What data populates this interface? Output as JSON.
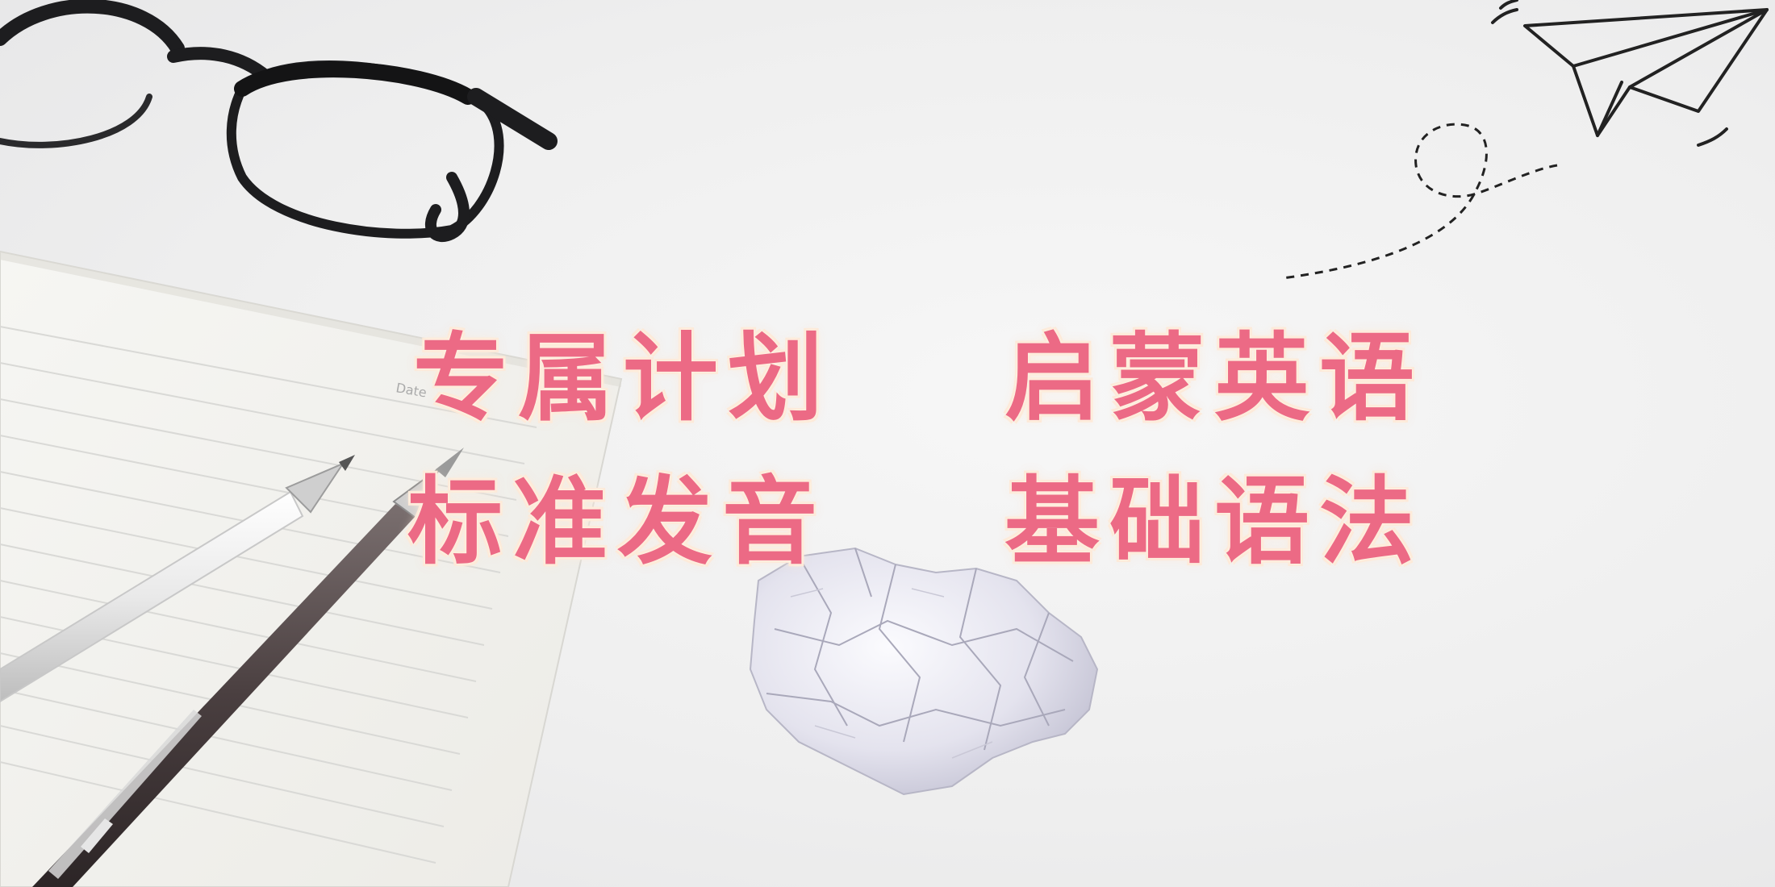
{
  "taglines": {
    "exclusive_plan": "专属计划",
    "enlightenment_english": "启蒙英语",
    "standard_pronunciation": "标准发音",
    "basic_grammar": "基础语法"
  },
  "notebook": {
    "date_label": "Date"
  },
  "colors": {
    "accent": "#ec6a85",
    "glow": "#fde9d8",
    "background": "#efefef"
  }
}
